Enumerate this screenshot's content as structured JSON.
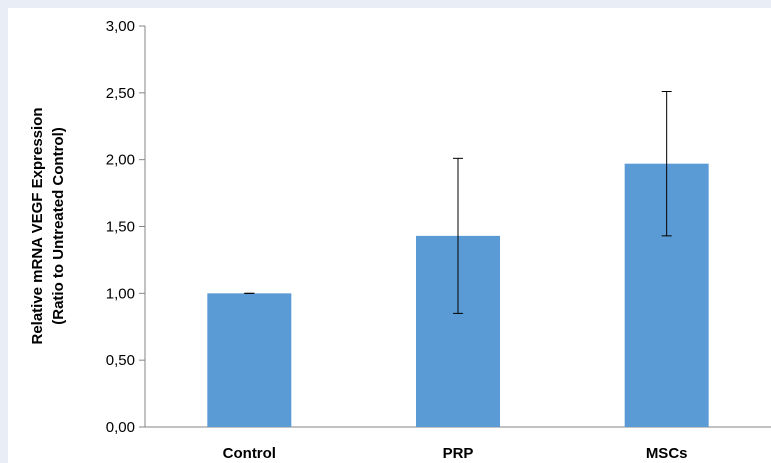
{
  "chart_data": {
    "type": "bar",
    "categories": [
      "Control",
      "PRP",
      "MSCs"
    ],
    "values": [
      1.0,
      1.43,
      1.97
    ],
    "error_high": [
      1.0,
      2.01,
      2.51
    ],
    "error_low": [
      1.0,
      0.85,
      1.43
    ],
    "ylabel_line1": "Relative mRNA VEGF Expression",
    "ylabel_line2": "(Ratio to Untreated Control)",
    "ylim": [
      0,
      3
    ],
    "yticks": [
      "0,00",
      "0,50",
      "1,00",
      "1,50",
      "2,00",
      "2,50",
      "3,00"
    ],
    "grid": false,
    "bar_color": "#5b9bd5"
  }
}
